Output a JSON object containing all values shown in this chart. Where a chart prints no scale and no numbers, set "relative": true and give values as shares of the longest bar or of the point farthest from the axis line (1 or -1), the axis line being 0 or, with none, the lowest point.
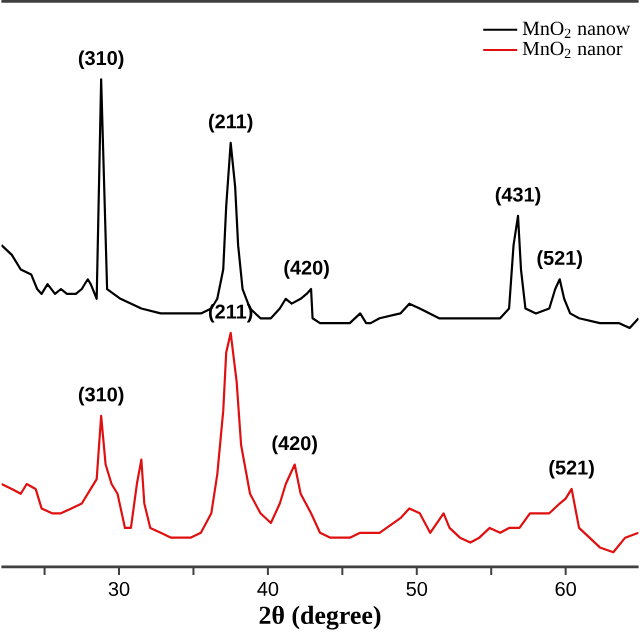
{
  "chart_data": {
    "type": "line",
    "relative": true,
    "xlabel": "2θ (degree)",
    "xlim": [
      22.1,
      64.9
    ],
    "xticks": [
      {
        "value": 25,
        "label": null
      },
      30,
      {
        "value": 35,
        "label": null
      },
      40,
      {
        "value": 45,
        "label": null
      },
      50,
      {
        "value": 55,
        "label": null
      },
      60
    ],
    "legend": "top right",
    "series": [
      {
        "name": "MnO$_{2}$ nanow",
        "color": "#000000",
        "x": [
          22.1,
          22.8,
          23.4,
          24.1,
          24.5,
          24.8,
          25.2,
          25.7,
          26.1,
          26.5,
          27.1,
          27.5,
          27.9,
          28.1,
          28.5,
          28.8,
          29.2,
          30.1,
          31.5,
          32.8,
          34.1,
          35.5,
          36.2,
          36.6,
          37.0,
          37.2,
          37.5,
          37.8,
          38.0,
          38.3,
          38.8,
          39.5,
          40.2,
          40.8,
          41.2,
          41.6,
          42.2,
          42.6,
          42.9,
          43.0,
          43.5,
          44.9,
          45.5,
          46.2,
          46.6,
          46.9,
          47.5,
          48.9,
          49.5,
          50.2,
          51.5,
          52.9,
          54.2,
          55.6,
          56.2,
          56.5,
          56.8,
          57.0,
          57.3,
          58.0,
          58.9,
          59.3,
          59.6,
          59.9,
          60.3,
          60.9,
          62.3,
          63.6,
          64.3,
          64.9
        ],
        "values": [
          0.66,
          0.64,
          0.61,
          0.6,
          0.57,
          0.56,
          0.58,
          0.56,
          0.57,
          0.56,
          0.56,
          0.57,
          0.59,
          0.58,
          0.55,
          1,
          0.57,
          0.55,
          0.53,
          0.52,
          0.52,
          0.52,
          0.53,
          0.55,
          0.61,
          0.74,
          0.87,
          0.78,
          0.66,
          0.57,
          0.53,
          0.51,
          0.51,
          0.53,
          0.55,
          0.54,
          0.55,
          0.56,
          0.57,
          0.51,
          0.5,
          0.5,
          0.5,
          0.52,
          0.5,
          0.5,
          0.51,
          0.52,
          0.54,
          0.53,
          0.51,
          0.51,
          0.51,
          0.51,
          0.53,
          0.66,
          0.72,
          0.61,
          0.53,
          0.52,
          0.53,
          0.57,
          0.59,
          0.55,
          0.52,
          0.51,
          0.5,
          0.5,
          0.49,
          0.51
        ]
      },
      {
        "name": "MnO$_{2}$ nanor",
        "color": "#e01010",
        "x": [
          22.1,
          22.8,
          23.4,
          23.8,
          24.4,
          24.8,
          25.5,
          26.1,
          26.8,
          27.5,
          28.1,
          28.5,
          28.8,
          29.1,
          29.5,
          29.9,
          30.4,
          30.8,
          31.2,
          31.5,
          31.7,
          32.1,
          32.8,
          33.5,
          34.1,
          34.8,
          35.5,
          36.2,
          36.6,
          37.0,
          37.2,
          37.5,
          37.9,
          38.2,
          38.8,
          39.5,
          40.2,
          40.8,
          41.2,
          41.8,
          42.2,
          42.9,
          43.5,
          44.2,
          44.9,
          45.5,
          46.2,
          47.5,
          48.9,
          49.5,
          50.2,
          50.9,
          51.8,
          52.2,
          52.9,
          53.6,
          54.2,
          54.9,
          55.6,
          56.2,
          56.9,
          57.6,
          58.9,
          59.6,
          60.0,
          60.4,
          60.9,
          61.6,
          62.3,
          63.2,
          64.0,
          64.9
        ],
        "values": [
          0.17,
          0.16,
          0.15,
          0.17,
          0.16,
          0.12,
          0.11,
          0.11,
          0.12,
          0.13,
          0.16,
          0.18,
          0.31,
          0.21,
          0.17,
          0.15,
          0.08,
          0.08,
          0.17,
          0.22,
          0.13,
          0.08,
          0.07,
          0.06,
          0.06,
          0.06,
          0.07,
          0.11,
          0.19,
          0.32,
          0.44,
          0.48,
          0.38,
          0.25,
          0.15,
          0.11,
          0.09,
          0.13,
          0.17,
          0.21,
          0.15,
          0.11,
          0.07,
          0.06,
          0.06,
          0.06,
          0.07,
          0.07,
          0.1,
          0.12,
          0.11,
          0.07,
          0.11,
          0.08,
          0.06,
          0.05,
          0.06,
          0.08,
          0.07,
          0.08,
          0.08,
          0.11,
          0.11,
          0.13,
          0.14,
          0.16,
          0.08,
          0.06,
          0.04,
          0.03,
          0.06,
          0.07
        ]
      }
    ],
    "annotations": [
      {
        "text": "(310)",
        "x": 28.8,
        "y": 1
      },
      {
        "text": "(211)",
        "x": 37.5,
        "y": 0.87
      },
      {
        "text": "(420)",
        "x": 42.6,
        "y": 0.57
      },
      {
        "text": "(431)",
        "x": 56.8,
        "y": 0.72
      },
      {
        "text": "(521)",
        "x": 59.6,
        "y": 0.59
      },
      {
        "text": "(310)",
        "x": 28.8,
        "y": 0.31
      },
      {
        "text": "(211)",
        "x": 37.5,
        "y": 0.48
      },
      {
        "text": "(420)",
        "x": 41.8,
        "y": 0.21
      },
      {
        "text": "(521)",
        "x": 60.4,
        "y": 0.16
      }
    ]
  }
}
